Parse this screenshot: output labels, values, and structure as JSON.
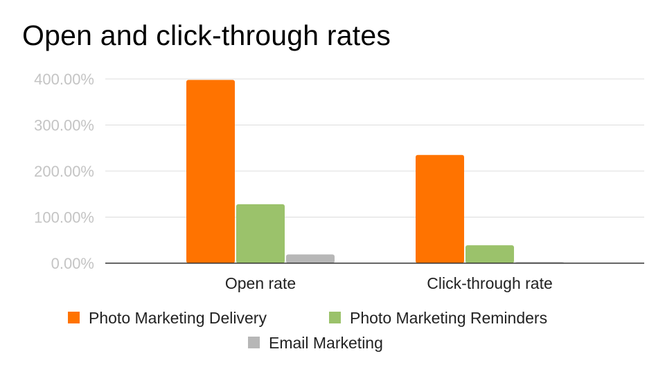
{
  "chart_data": {
    "type": "bar",
    "title": "Open and click-through rates",
    "categories": [
      "Open rate",
      "Click-through rate"
    ],
    "series": [
      {
        "name": "Photo Marketing Delivery",
        "values": [
          398,
          235
        ],
        "color": "#ff7300"
      },
      {
        "name": "Photo Marketing Reminders",
        "values": [
          128,
          39
        ],
        "color": "#9bc26b"
      },
      {
        "name": "Email Marketing",
        "values": [
          19,
          2
        ],
        "color": "#b7b7b7"
      }
    ],
    "yticks": [
      "0.00%",
      "100.00%",
      "200.00%",
      "300.00%",
      "400.00%"
    ],
    "ylim": [
      0,
      400
    ],
    "grid": true,
    "legend_position": "bottom"
  }
}
